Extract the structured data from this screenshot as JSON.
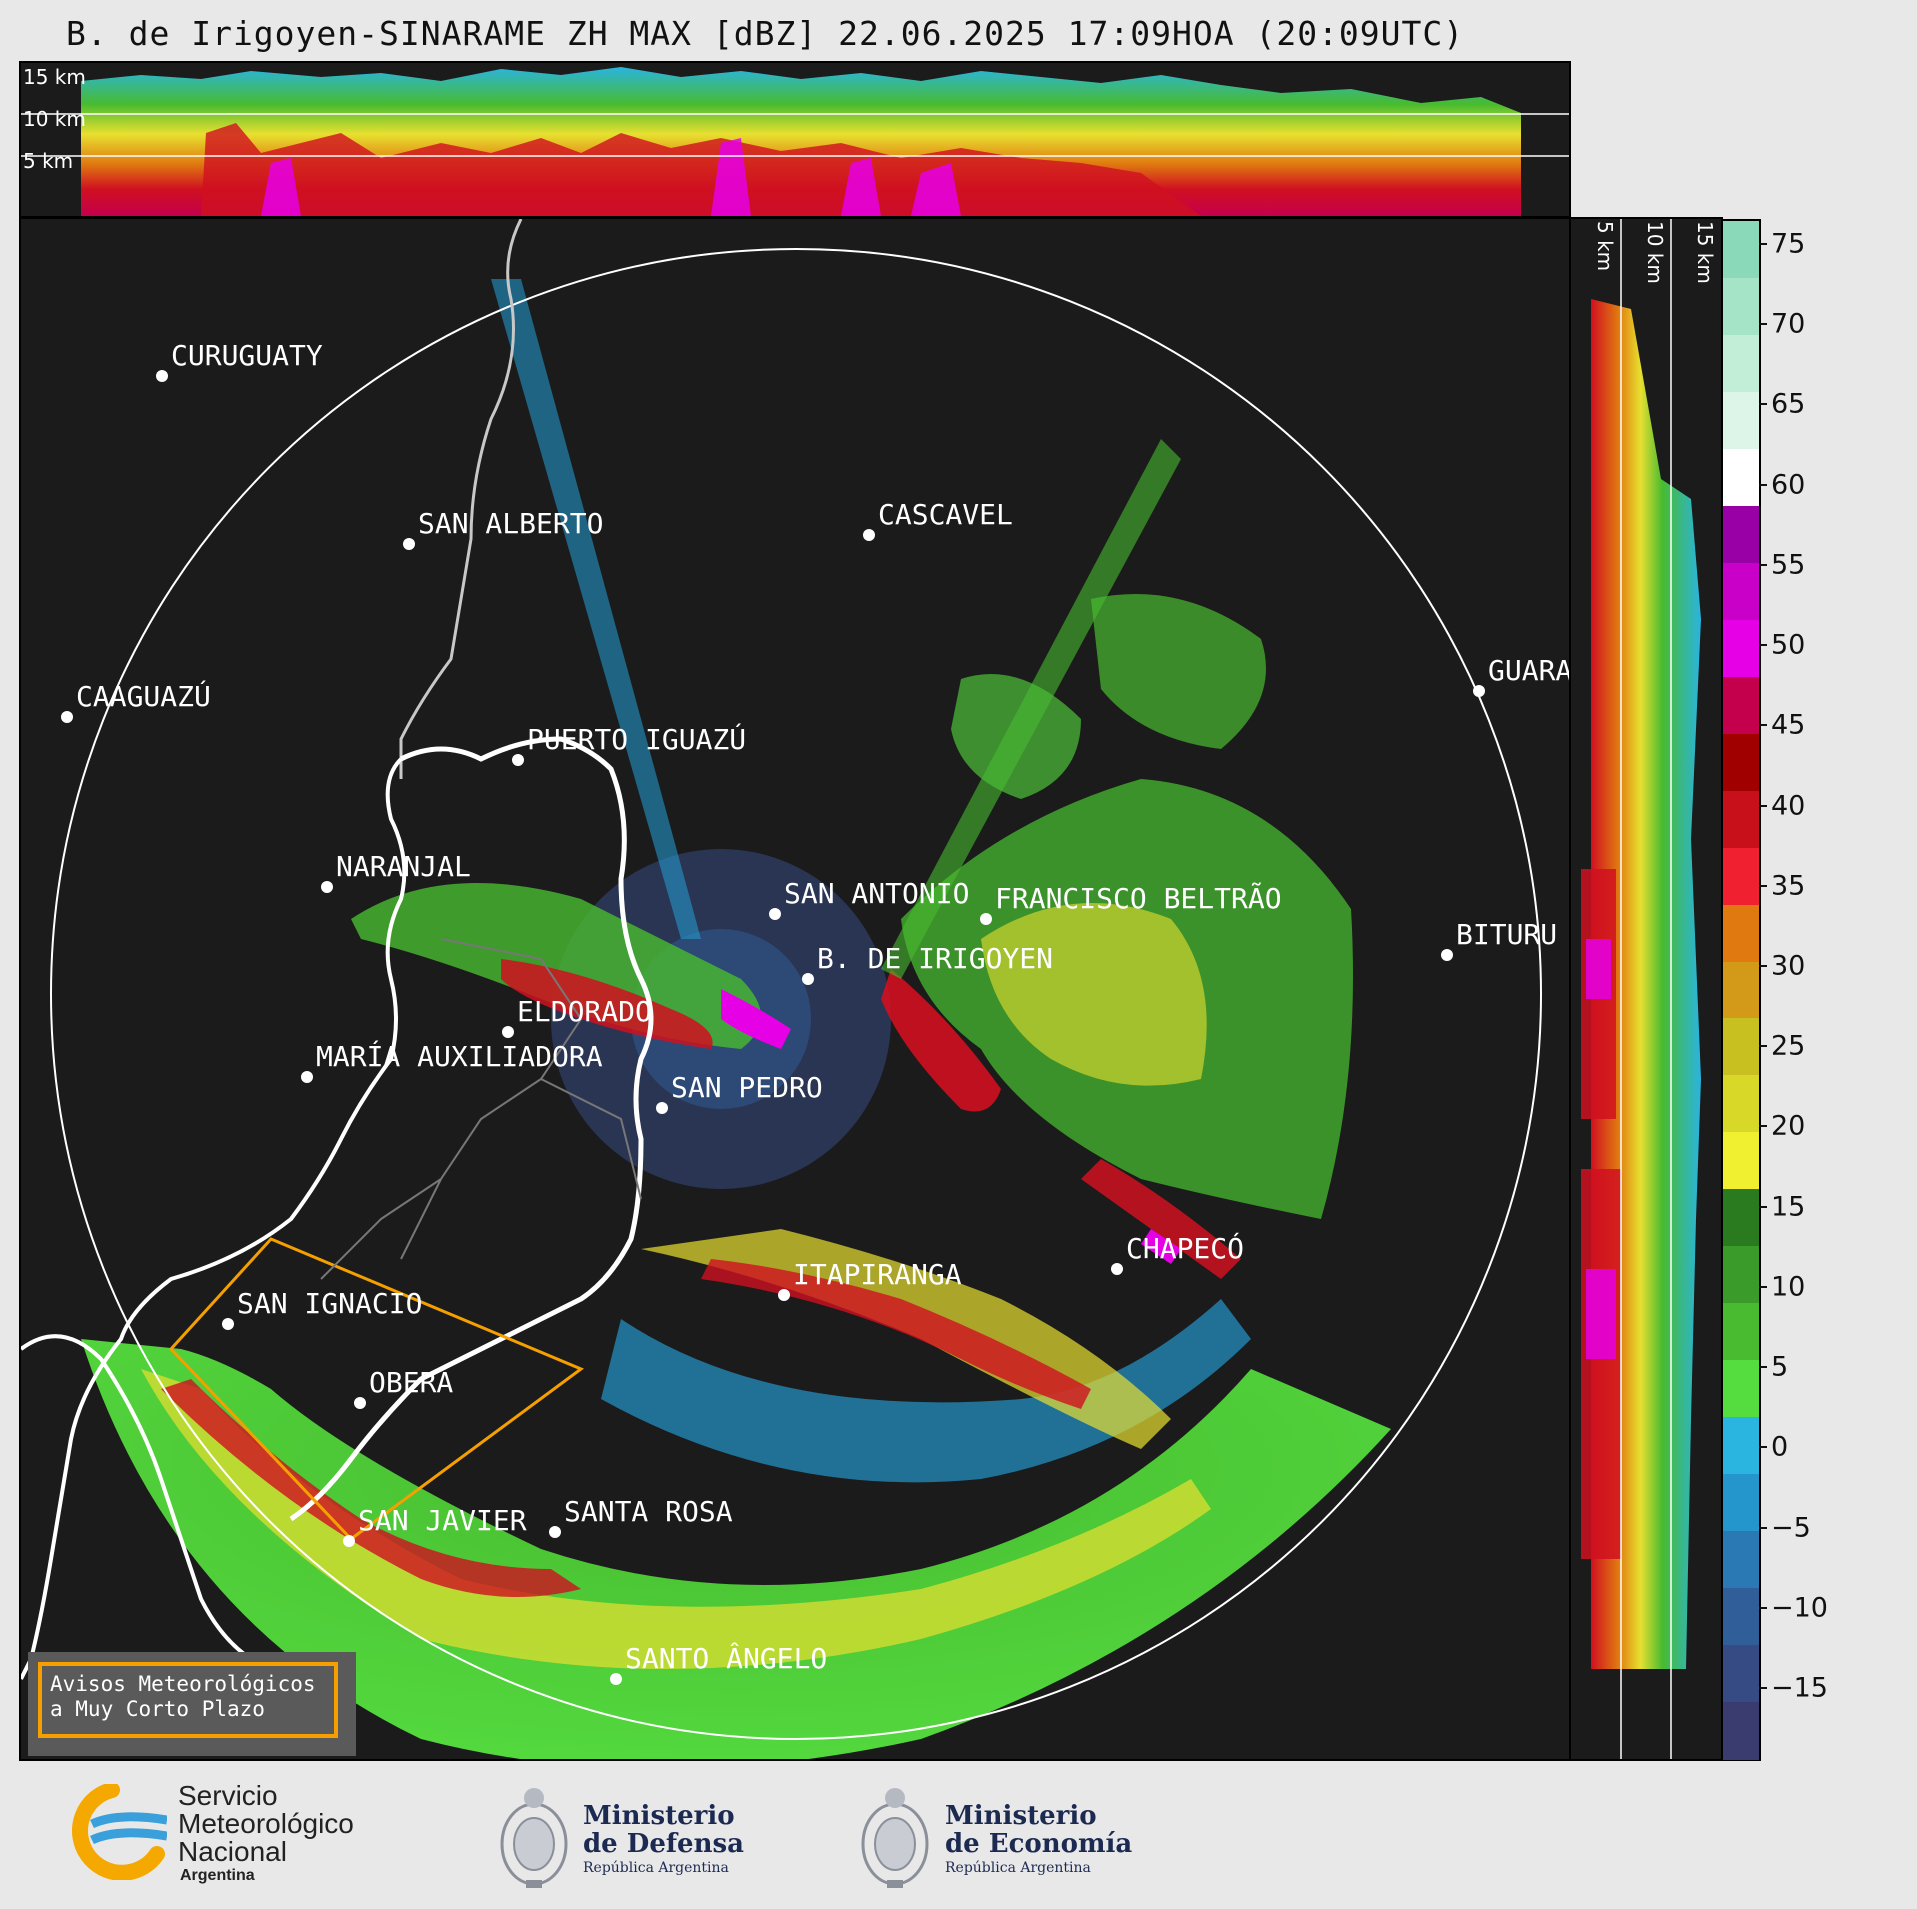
{
  "title": "B. de Irigoyen-SINARAME ZH MAX [dBZ] 22.06.2025 17:09HOA (20:09UTC)",
  "height_labels_top": [
    "15 km",
    "10 km",
    "5 km"
  ],
  "height_labels_side": [
    "5 km",
    "10 km",
    "15 km"
  ],
  "colorbar": {
    "ticks": [
      "75",
      "70",
      "65",
      "60",
      "55",
      "50",
      "45",
      "40",
      "35",
      "30",
      "25",
      "20",
      "15",
      "10",
      "5",
      "0",
      "−5",
      "−10",
      "−15"
    ],
    "colors": [
      "#8ad9b8",
      "#a6e4c8",
      "#c2eed8",
      "#ddf5e8",
      "#ffffff",
      "#9900a6",
      "#c800c8",
      "#e600e6",
      "#c4004d",
      "#a00000",
      "#c8101a",
      "#f02030",
      "#e07a10",
      "#d29a18",
      "#c8c020",
      "#d8d828",
      "#f0f030",
      "#2a7a20",
      "#3a9a2a",
      "#48bb30",
      "#55dd40",
      "#2ab4e0",
      "#2496cc",
      "#2a78b4",
      "#2f5e98",
      "#364a84",
      "#3a3c70"
    ]
  },
  "cities": [
    {
      "name": "CURUGUATY"
    },
    {
      "name": "SAN ALBERTO"
    },
    {
      "name": "CASCAVEL"
    },
    {
      "name": "CAAGUAZÚ"
    },
    {
      "name": "GUARA"
    },
    {
      "name": "PUERTO IGUAZÚ"
    },
    {
      "name": "NARANJAL"
    },
    {
      "name": "SAN ANTONIO"
    },
    {
      "name": "FRANCISCO BELTRÃO"
    },
    {
      "name": "BITURU"
    },
    {
      "name": "B. DE IRIGOYEN"
    },
    {
      "name": "ELDORADO"
    },
    {
      "name": "MARÍA AUXILIADORA"
    },
    {
      "name": "SAN PEDRO"
    },
    {
      "name": "CHAPECÓ"
    },
    {
      "name": "ITAPIRANGA"
    },
    {
      "name": "SAN IGNACIO"
    },
    {
      "name": "OBERÁ"
    },
    {
      "name": "SAN JAVIER"
    },
    {
      "name": "SANTA ROSA"
    },
    {
      "name": "SANTO ÂNGELO"
    }
  ],
  "warning_box": {
    "line1": "Avisos Meteorológicos",
    "line2": "a Muy Corto Plazo",
    "border_color": "#f5a000"
  },
  "logos": {
    "smn": {
      "line1": "Servicio",
      "line2": "Meteorológico",
      "line3": "Nacional",
      "line4": "Argentina"
    },
    "defensa": {
      "line1": "Ministerio",
      "line2": "de Defensa",
      "line3": "República Argentina"
    },
    "economia": {
      "line1": "Ministerio",
      "line2": "de Economía",
      "line3": "República Argentina"
    }
  }
}
